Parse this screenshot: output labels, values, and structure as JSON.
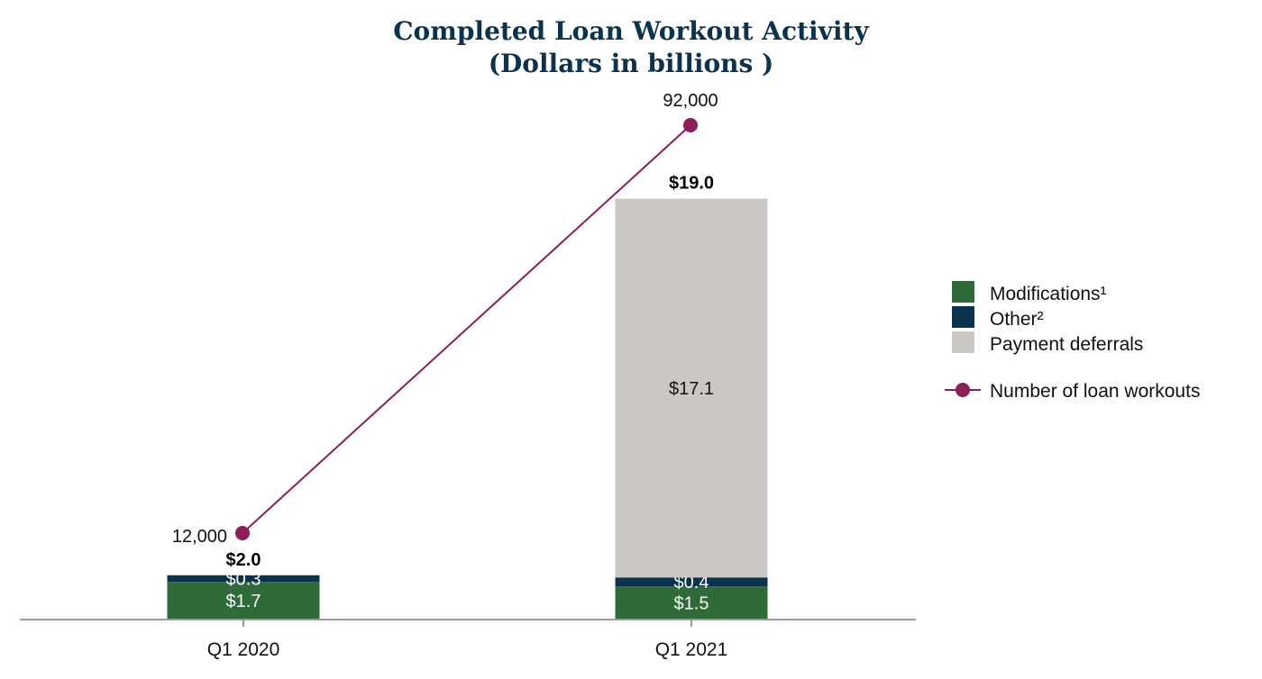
{
  "chart_data": {
    "type": "bar",
    "title": "Completed Loan Workout Activity",
    "subtitle": "(Dollars in billions )",
    "categories": [
      "Q1 2020",
      "Q1 2021"
    ],
    "series": [
      {
        "name": "Modifications¹",
        "values": [
          1.7,
          1.5
        ],
        "labels": [
          "$1.7",
          "$1.5"
        ],
        "color": "#2e6b38",
        "label_color": "#ffffff"
      },
      {
        "name": "Other²",
        "values": [
          0.3,
          0.4
        ],
        "labels": [
          "$0.3",
          "$0.4"
        ],
        "color": "#0b3350",
        "label_color": "#ffffff"
      },
      {
        "name": "Payment deferrals",
        "values": [
          0,
          17.1
        ],
        "labels": [
          "",
          "$17.1"
        ],
        "color": "#cbc8c3",
        "label_color": "#111111"
      }
    ],
    "totals": [
      2.0,
      19.0
    ],
    "total_labels": [
      "$2.0",
      "$19.0"
    ],
    "line_series": {
      "name": "Number of loan workouts",
      "values": [
        12000,
        92000
      ],
      "labels": [
        "12,000",
        "92,000"
      ],
      "color": "#8e1d5b"
    },
    "ylim": [
      0,
      20
    ],
    "line_ylim": [
      0,
      100000
    ],
    "grid": false,
    "legend_position": "right"
  }
}
